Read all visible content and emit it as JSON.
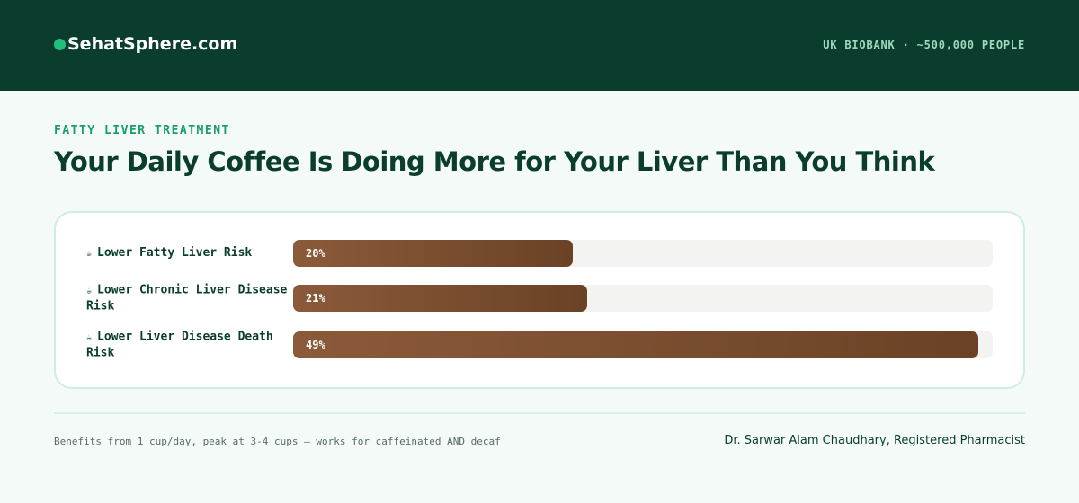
{
  "header": {
    "logo": "SehatSphere.com",
    "tagline": "UK BIOBANK · ~500,000 PEOPLE"
  },
  "kicker": "FATTY LIVER TREATMENT",
  "chart_data": {
    "type": "bar",
    "orientation": "horizontal",
    "title": "Your Daily Coffee Is Doing More for Your Liver Than You Think",
    "categories": [
      "Lower Fatty Liver Risk",
      "Lower Chronic Liver Disease Risk",
      "Lower Liver Disease Death Risk"
    ],
    "values": [
      20,
      21,
      49
    ],
    "value_labels": [
      "20%",
      "21%",
      "49%"
    ],
    "xlim": [
      0,
      50
    ],
    "color": "#7a4c2e"
  },
  "footer": {
    "note": "Benefits from 1 cup/day, peak at 3-4 cups — works for caffeinated AND decaf",
    "author": "Dr. Sarwar Alam Chaudhary, Registered Pharmacist"
  }
}
